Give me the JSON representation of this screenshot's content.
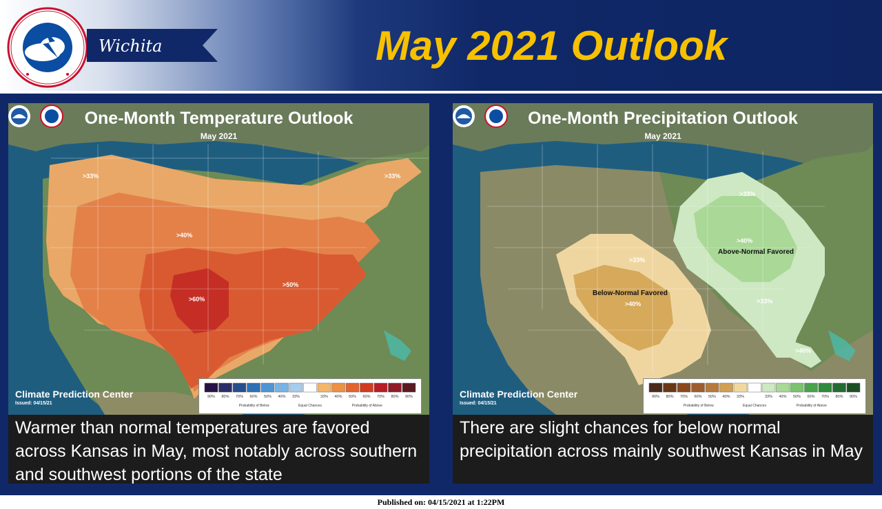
{
  "header": {
    "office": "Wichita",
    "title": "May 2021 Outlook",
    "logo_text": "NATIONAL WEATHER SERVICE",
    "colors": {
      "title": "#f7c100",
      "header_dark": "#102868"
    }
  },
  "temperature_panel": {
    "map_title": "One-Month Temperature Outlook",
    "map_subtitle": "May 2021",
    "agency": "Climate Prediction Center",
    "issued": "Issued: 04/15/21",
    "labels": [
      ">33%",
      ">33%",
      ">40%",
      ">50%",
      ">60%"
    ],
    "legend": {
      "ticks": [
        "90%",
        "80%",
        "70%",
        "60%",
        "50%",
        "40%",
        "33%",
        "33%",
        "40%",
        "50%",
        "60%",
        "70%",
        "80%",
        "90%"
      ],
      "below": "Probability of Below",
      "equal": "Equal Chances",
      "above": "Probability of Above",
      "colors": [
        "#261245",
        "#2b2f66",
        "#264e8c",
        "#2f70b4",
        "#4f95d3",
        "#79b3e3",
        "#a7cdec",
        "#ffffff",
        "#f4b66a",
        "#eb9244",
        "#e2642f",
        "#d13b22",
        "#b81d24",
        "#8e1b27",
        "#5a1a22"
      ]
    },
    "caption": "Warmer than normal temperatures are favored across Kansas in May, most notably across southern and southwest portions of the state"
  },
  "precipitation_panel": {
    "map_title": "One-Month Precipitation Outlook",
    "map_subtitle": "May 2021",
    "agency": "Climate Prediction Center",
    "issued": "Issued: 04/15/21",
    "labels": [
      ">33%",
      ">33%",
      ">40%",
      ">40%",
      ">33%",
      ">40%"
    ],
    "region_labels": [
      "Below-Normal Favored",
      "Above-Normal Favored"
    ],
    "legend": {
      "ticks": [
        "90%",
        "80%",
        "70%",
        "60%",
        "50%",
        "40%",
        "33%",
        "33%",
        "40%",
        "50%",
        "60%",
        "70%",
        "80%",
        "90%"
      ],
      "below": "Probability of Below",
      "equal": "Equal Chances",
      "above": "Probability of Above",
      "colors": [
        "#4a2a1a",
        "#6b3814",
        "#8a4a1c",
        "#9d5d2f",
        "#b67a3e",
        "#d0a055",
        "#f0d9a0",
        "#ffffff",
        "#cde8c2",
        "#a9d897",
        "#7cc36e",
        "#4aa34a",
        "#2e8a3c",
        "#246b33",
        "#1c4f26"
      ]
    },
    "caption": "There are slight chances for below normal precipitation across mainly southwest Kansas in May"
  },
  "footer": {
    "published": "Published on: 04/15/2021 at 1:22PM"
  }
}
